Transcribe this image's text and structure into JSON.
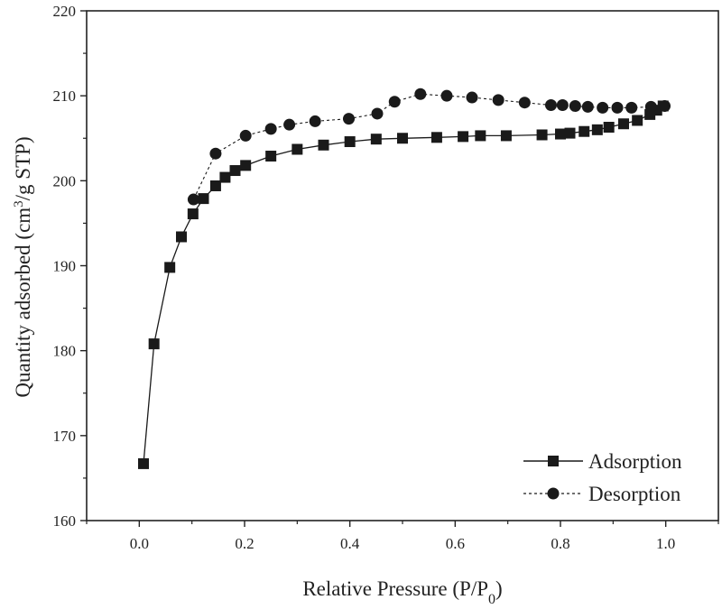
{
  "chart_data": {
    "type": "scatter",
    "title": "",
    "xlabel": "Relative Pressure (P/P0)",
    "xlabel_parts": {
      "main": "Relative Pressure (P/P",
      "sub": "0",
      "close": ")"
    },
    "ylabel": "Quantity adsorbed (cm3/g STP)",
    "ylabel_parts": {
      "main": "Quantity adsorbed (cm",
      "sup": "3",
      "rest": "/g STP)"
    },
    "xlim": [
      -0.1,
      1.1
    ],
    "ylim": [
      160,
      220
    ],
    "xticks": [
      0.0,
      0.2,
      0.4,
      0.6,
      0.8,
      1.0
    ],
    "xtick_labels": [
      "0.0",
      "0.2",
      "0.4",
      "0.6",
      "0.8",
      "1.0"
    ],
    "yticks": [
      160,
      170,
      180,
      190,
      200,
      210,
      220
    ],
    "ytick_labels": [
      "160",
      "170",
      "180",
      "190",
      "200",
      "210",
      "220"
    ],
    "grid": false,
    "legend_position": "bottom-right",
    "series": [
      {
        "name": "Adsorption",
        "marker": "square",
        "line_style": "solid",
        "color": "#1a1a1a",
        "x": [
          0.008,
          0.028,
          0.058,
          0.08,
          0.102,
          0.122,
          0.145,
          0.163,
          0.182,
          0.202,
          0.25,
          0.3,
          0.35,
          0.4,
          0.45,
          0.5,
          0.565,
          0.615,
          0.648,
          0.697,
          0.765,
          0.8,
          0.818,
          0.845,
          0.87,
          0.892,
          0.92,
          0.946,
          0.97,
          0.983,
          0.995
        ],
        "y": [
          166.7,
          180.8,
          189.8,
          193.4,
          196.1,
          197.9,
          199.4,
          200.4,
          201.2,
          201.8,
          202.9,
          203.7,
          204.2,
          204.6,
          204.9,
          205.0,
          205.1,
          205.2,
          205.3,
          205.3,
          205.4,
          205.5,
          205.6,
          205.8,
          206.0,
          206.3,
          206.7,
          207.1,
          207.8,
          208.3,
          208.8
        ]
      },
      {
        "name": "Desorption",
        "marker": "circle",
        "line_style": "dashed",
        "color": "#1a1a1a",
        "x": [
          0.998,
          0.972,
          0.935,
          0.908,
          0.88,
          0.852,
          0.828,
          0.804,
          0.782,
          0.732,
          0.682,
          0.632,
          0.584,
          0.534,
          0.485,
          0.452,
          0.398,
          0.334,
          0.285,
          0.25,
          0.202,
          0.145,
          0.103
        ],
        "y": [
          208.8,
          208.7,
          208.6,
          208.6,
          208.6,
          208.7,
          208.8,
          208.9,
          208.9,
          209.2,
          209.5,
          209.8,
          210.0,
          210.2,
          209.3,
          207.9,
          207.3,
          207.0,
          206.6,
          206.1,
          205.3,
          203.2,
          197.8
        ]
      }
    ]
  }
}
